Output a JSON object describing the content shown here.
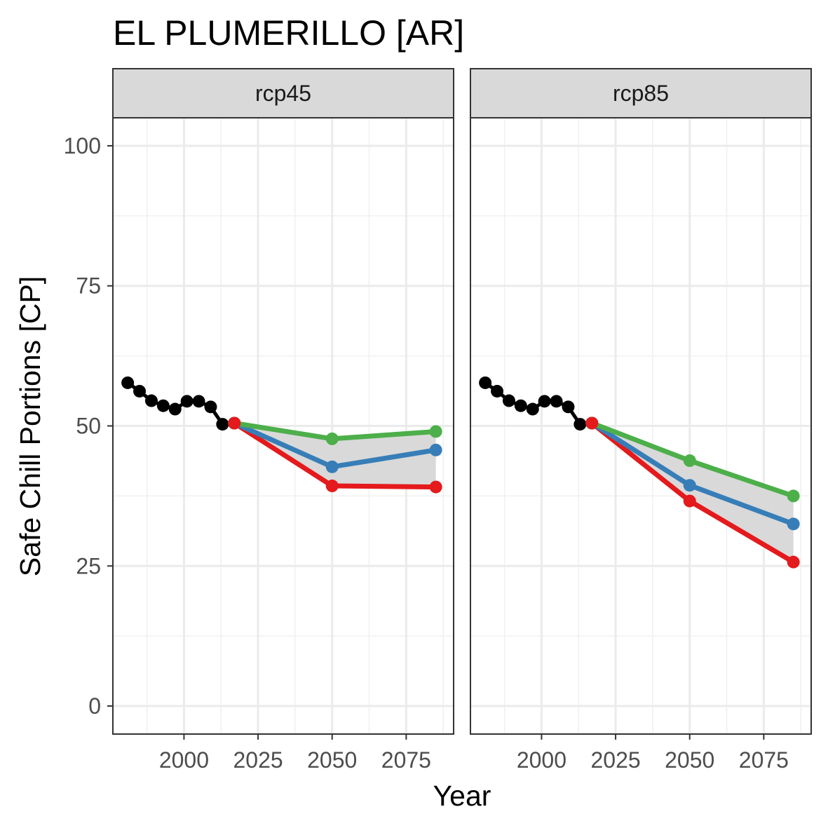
{
  "chart_data": {
    "type": "line",
    "title": "EL PLUMERILLO [AR]",
    "xlabel": "Year",
    "ylabel": "Safe Chill Portions [CP]",
    "xlim": [
      1976,
      2091
    ],
    "ylim": [
      -5,
      105
    ],
    "x_ticks": [
      2000,
      2025,
      2050,
      2075
    ],
    "y_ticks": [
      0,
      25,
      50,
      75,
      100
    ],
    "grid": true,
    "legend": "none",
    "historic_color": "#000000",
    "ribbon_color": "#d9d9d9",
    "panels": [
      {
        "label": "rcp45",
        "historic": {
          "x": [
            1981,
            1985,
            1989,
            1993,
            1997,
            2001,
            2005,
            2009,
            2013,
            2017
          ],
          "y": [
            57.7,
            56.2,
            54.5,
            53.6,
            53.0,
            54.4,
            54.4,
            53.4,
            50.3,
            50.5
          ]
        },
        "series": [
          {
            "color": "#4daf4a",
            "x": [
              2017,
              2050,
              2085
            ],
            "y": [
              50.5,
              47.7,
              49.0
            ]
          },
          {
            "color": "#377eb8",
            "x": [
              2017,
              2050,
              2085
            ],
            "y": [
              50.5,
              42.7,
              45.7
            ]
          },
          {
            "color": "#e41a1c",
            "x": [
              2017,
              2050,
              2085
            ],
            "y": [
              50.5,
              39.3,
              39.1
            ]
          }
        ]
      },
      {
        "label": "rcp85",
        "historic": {
          "x": [
            1981,
            1985,
            1989,
            1993,
            1997,
            2001,
            2005,
            2009,
            2013,
            2017
          ],
          "y": [
            57.7,
            56.2,
            54.5,
            53.6,
            53.0,
            54.4,
            54.4,
            53.4,
            50.3,
            50.5
          ]
        },
        "series": [
          {
            "color": "#4daf4a",
            "x": [
              2017,
              2050,
              2085
            ],
            "y": [
              50.5,
              43.8,
              37.5
            ]
          },
          {
            "color": "#377eb8",
            "x": [
              2017,
              2050,
              2085
            ],
            "y": [
              50.5,
              39.4,
              32.5
            ]
          },
          {
            "color": "#e41a1c",
            "x": [
              2017,
              2050,
              2085
            ],
            "y": [
              50.5,
              36.6,
              25.7
            ]
          }
        ]
      }
    ]
  }
}
